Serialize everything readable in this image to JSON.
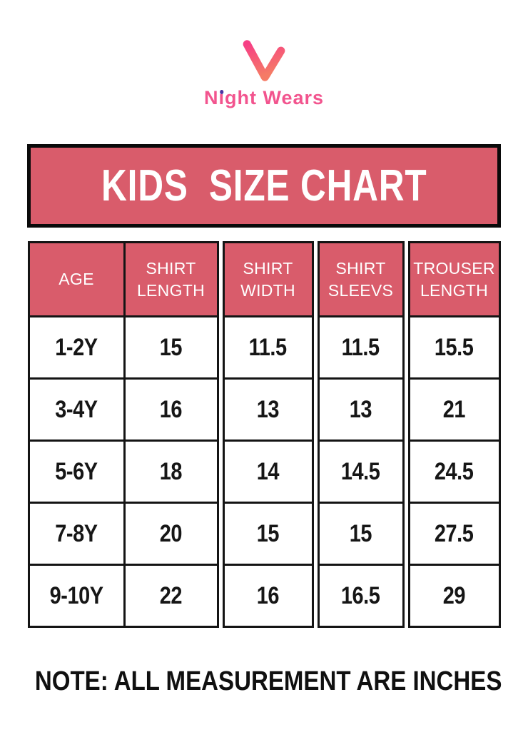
{
  "brand": {
    "name": "Night Wears",
    "name_parts": [
      "N",
      "ı",
      "ght Wears"
    ],
    "logo_icon": "nw-monogram",
    "logo_colors": {
      "gradient_top": "#f63f85",
      "gradient_bottom": "#f57b66",
      "i_dot": "#4d35a3",
      "text_pink": "#f2548e"
    }
  },
  "banner": {
    "background": "#d95c6b",
    "border": "#0a0a0a",
    "text_color": "#ffffff"
  },
  "chart_data": {
    "type": "table",
    "title": "KIDS  SIZE CHART",
    "columns": [
      "AGE",
      "SHIRT LENGTH",
      "SHIRT WIDTH",
      "SHIRT SLEEVS",
      "TROUSER LENGTH"
    ],
    "rows": [
      {
        "age": "1-2Y",
        "values": [
          "15",
          "11.5",
          "11.5",
          "15.5"
        ]
      },
      {
        "age": "3-4Y",
        "values": [
          "16",
          "13",
          "13",
          "21"
        ]
      },
      {
        "age": "5-6Y",
        "values": [
          "18",
          "14",
          "14.5",
          "24.5"
        ]
      },
      {
        "age": "7-8Y",
        "values": [
          "20",
          "15",
          "15",
          "27.5"
        ]
      },
      {
        "age": "9-10Y",
        "values": [
          "22",
          "16",
          "16.5",
          "29"
        ]
      }
    ],
    "header_background": "#d95c6b",
    "header_text_color": "#ffffff",
    "grid": "black solid borders"
  },
  "note": {
    "text": "NOTE: ALL MEASUREMENT ARE INCHES"
  }
}
